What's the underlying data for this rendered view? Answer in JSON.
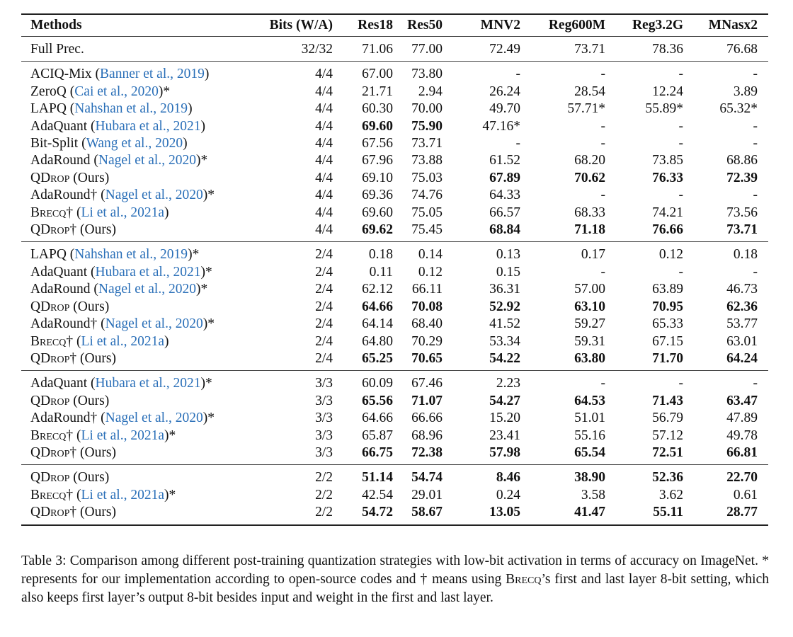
{
  "header": [
    "Methods",
    "Bits (W/A)",
    "Res18",
    "Res50",
    "MNV2",
    "Reg600M",
    "Reg3.2G",
    "MNasx2"
  ],
  "groups": [
    [
      {
        "name": "Full Prec.",
        "bits": "32/32",
        "values": [
          "71.06",
          "77.00",
          "72.49",
          "73.71",
          "78.36",
          "76.68"
        ],
        "bold": []
      }
    ],
    [
      {
        "name": "ACIQ-Mix",
        "cite": "Banner et al., 2019",
        "bits": "4/4",
        "values": [
          "67.00",
          "73.80",
          "-",
          "-",
          "-",
          "-"
        ],
        "bold": []
      },
      {
        "name": "ZeroQ",
        "cite": "Cai et al., 2020",
        "star": "*",
        "bits": "4/4",
        "values": [
          "21.71",
          "2.94",
          "26.24",
          "28.54",
          "12.24",
          "3.89"
        ],
        "bold": []
      },
      {
        "name": "LAPQ",
        "cite": "Nahshan et al., 2019",
        "bits": "4/4",
        "values": [
          "60.30",
          "70.00",
          "49.70",
          "57.71*",
          "55.89*",
          "65.32*"
        ],
        "bold": []
      },
      {
        "name": "AdaQuant",
        "cite": "Hubara et al., 2021",
        "bits": "4/4",
        "values": [
          "69.60",
          "75.90",
          "47.16*",
          "-",
          "-",
          "-"
        ],
        "bold": [
          0,
          1
        ]
      },
      {
        "name": "Bit-Split",
        "cite": "Wang et al., 2020",
        "bits": "4/4",
        "values": [
          "67.56",
          "73.71",
          "-",
          "-",
          "-",
          "-"
        ],
        "bold": []
      },
      {
        "name": "AdaRound",
        "cite": "Nagel et al., 2020",
        "star": "*",
        "bits": "4/4",
        "values": [
          "67.96",
          "73.88",
          "61.52",
          "68.20",
          "73.85",
          "68.86"
        ],
        "bold": []
      },
      {
        "name": "QDrop",
        "sc": true,
        "note": "(Ours)",
        "bits": "4/4",
        "values": [
          "69.10",
          "75.03",
          "67.89",
          "70.62",
          "76.33",
          "72.39"
        ],
        "bold": [
          2,
          3,
          4,
          5
        ]
      },
      {
        "name": "AdaRound",
        "dagger": "†",
        "cite": "Nagel et al., 2020",
        "star": "*",
        "bits": "4/4",
        "values": [
          "69.36",
          "74.76",
          "64.33",
          "-",
          "-",
          "-"
        ],
        "bold": []
      },
      {
        "name": "Brecq",
        "sc": true,
        "dagger": "†",
        "cite": "Li et al., 2021a",
        "bits": "4/4",
        "values": [
          "69.60",
          "75.05",
          "66.57",
          "68.33",
          "74.21",
          "73.56"
        ],
        "bold": []
      },
      {
        "name": "QDrop",
        "sc": true,
        "dagger": "†",
        "note": "(Ours)",
        "bits": "4/4",
        "values": [
          "69.62",
          "75.45",
          "68.84",
          "71.18",
          "76.66",
          "73.71"
        ],
        "bold": [
          0,
          2,
          3,
          4,
          5
        ]
      }
    ],
    [
      {
        "name": "LAPQ",
        "cite": "Nahshan et al., 2019",
        "star": "*",
        "bits": "2/4",
        "values": [
          "0.18",
          "0.14",
          "0.13",
          "0.17",
          "0.12",
          "0.18"
        ],
        "bold": []
      },
      {
        "name": "AdaQuant",
        "cite": "Hubara et al., 2021",
        "star": "*",
        "bits": "2/4",
        "values": [
          "0.11",
          "0.12",
          "0.15",
          "-",
          "-",
          "-"
        ],
        "bold": []
      },
      {
        "name": "AdaRound",
        "cite": "Nagel et al., 2020",
        "star": "*",
        "bits": "2/4",
        "values": [
          "62.12",
          "66.11",
          "36.31",
          "57.00",
          "63.89",
          "46.73"
        ],
        "bold": []
      },
      {
        "name": "QDrop",
        "sc": true,
        "note": "(Ours)",
        "bits": "2/4",
        "values": [
          "64.66",
          "70.08",
          "52.92",
          "63.10",
          "70.95",
          "62.36"
        ],
        "bold": [
          0,
          1,
          2,
          3,
          4,
          5
        ]
      },
      {
        "name": "AdaRound",
        "dagger": "†",
        "cite": "Nagel et al., 2020",
        "star": "*",
        "bits": "2/4",
        "values": [
          "64.14",
          "68.40",
          "41.52",
          "59.27",
          "65.33",
          "53.77"
        ],
        "bold": []
      },
      {
        "name": "Brecq",
        "sc": true,
        "dagger": "†",
        "cite": "Li et al., 2021a",
        "bits": "2/4",
        "values": [
          "64.80",
          "70.29",
          "53.34",
          "59.31",
          "67.15",
          "63.01"
        ],
        "bold": []
      },
      {
        "name": "QDrop",
        "sc": true,
        "dagger": "†",
        "note": "(Ours)",
        "bits": "2/4",
        "values": [
          "65.25",
          "70.65",
          "54.22",
          "63.80",
          "71.70",
          "64.24"
        ],
        "bold": [
          0,
          1,
          2,
          3,
          4,
          5
        ]
      }
    ],
    [
      {
        "name": "AdaQuant",
        "cite": "Hubara et al., 2021",
        "star": "*",
        "bits": "3/3",
        "values": [
          "60.09",
          "67.46",
          "2.23",
          "-",
          "-",
          "-"
        ],
        "bold": []
      },
      {
        "name": "QDrop",
        "sc": true,
        "note": "(Ours)",
        "bits": "3/3",
        "values": [
          "65.56",
          "71.07",
          "54.27",
          "64.53",
          "71.43",
          "63.47"
        ],
        "bold": [
          0,
          1,
          2,
          3,
          4,
          5
        ]
      },
      {
        "name": "AdaRound",
        "dagger": "†",
        "cite": "Nagel et al., 2020",
        "star": "*",
        "bits": "3/3",
        "values": [
          "64.66",
          "66.66",
          "15.20",
          "51.01",
          "56.79",
          "47.89"
        ],
        "bold": []
      },
      {
        "name": "Brecq",
        "sc": true,
        "dagger": "†",
        "cite": "Li et al., 2021a",
        "star": "*",
        "bits": "3/3",
        "values": [
          "65.87",
          "68.96",
          "23.41",
          "55.16",
          "57.12",
          "49.78"
        ],
        "bold": []
      },
      {
        "name": "QDrop",
        "sc": true,
        "dagger": "†",
        "note": "(Ours)",
        "bits": "3/3",
        "values": [
          "66.75",
          "72.38",
          "57.98",
          "65.54",
          "72.51",
          "66.81"
        ],
        "bold": [
          0,
          1,
          2,
          3,
          4,
          5
        ]
      }
    ],
    [
      {
        "name": "QDrop",
        "sc": true,
        "note": "(Ours)",
        "bits": "2/2",
        "values": [
          "51.14",
          "54.74",
          "8.46",
          "38.90",
          "52.36",
          "22.70"
        ],
        "bold": [
          0,
          1,
          2,
          3,
          4,
          5
        ]
      },
      {
        "name": "Brecq",
        "sc": true,
        "dagger": "†",
        "cite": "Li et al., 2021a",
        "star": "*",
        "bits": "2/2",
        "values": [
          "42.54",
          "29.01",
          "0.24",
          "3.58",
          "3.62",
          "0.61"
        ],
        "bold": []
      },
      {
        "name": "QDrop",
        "sc": true,
        "dagger": "†",
        "note": "(Ours)",
        "bits": "2/2",
        "values": [
          "54.72",
          "58.67",
          "13.05",
          "41.47",
          "55.11",
          "28.77"
        ],
        "bold": [
          0,
          1,
          2,
          3,
          4,
          5
        ]
      }
    ]
  ],
  "caption": {
    "label": "Table 3:",
    "text1": " Comparison among different post-training quantization strategies with low-bit activation in terms of accuracy on ImageNet. * represents for our implementation according to open-source codes and † means using ",
    "brecq": "Brecq",
    "text2": "’s first and last layer 8-bit setting, which also keeps first layer’s output 8-bit besides input and weight in the first and last layer."
  },
  "colors": {
    "link": "#2a6fb8",
    "text": "#111111"
  }
}
